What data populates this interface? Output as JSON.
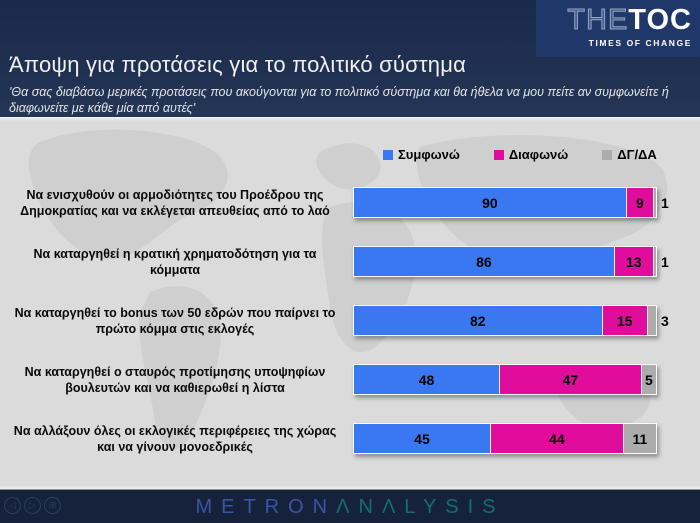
{
  "header": {
    "title": "Άποψη για προτάσεις για το πολιτικό σύστημα",
    "subtitle": "'Θα σας διαβάσω μερικές προτάσεις που ακούγονται για το πολιτικό σύστημα και θα ήθελα να μου πείτε αν συμφωνείτε ή διαφωνείτε με κάθε μία από αυτές'",
    "logo": {
      "part1": "THE",
      "part2": "TOC",
      "tagline": "TIMES OF CHANGE"
    }
  },
  "chart_data": {
    "type": "bar",
    "orientation": "horizontal",
    "stacked": true,
    "xlim": [
      0,
      100
    ],
    "legend_position": "top",
    "value_labels": true,
    "inside_label_min": 5,
    "categories": [
      "Να ενισχυθούν οι αρμοδιότητες του Προέδρου της Δημοκρατίας και να εκλέγεται απευθείας από το λαό",
      "Να καταργηθεί η κρατική χρηματοδότηση για τα κόμματα",
      "Να καταργηθεί το bonus των 50 εδρών που παίρνει το πρώτο κόμμα στις εκλογές",
      "Να καταργηθεί ο σταυρός προτίμησης υποψηφίων βουλευτών και να καθιερωθεί η λίστα",
      "Να αλλάξουν όλες οι εκλογικές περιφέρειες της χώρας και να γίνουν μονοεδρικές"
    ],
    "series": [
      {
        "name": "Συμφωνώ",
        "color": "#3A78F2",
        "values": [
          90,
          86,
          82,
          48,
          45
        ]
      },
      {
        "name": "Διαφωνώ",
        "color": "#DF0C9C",
        "values": [
          9,
          13,
          15,
          47,
          44
        ]
      },
      {
        "name": "ΔΓ/ΔΑ",
        "color": "#ACACAC",
        "values": [
          1,
          1,
          3,
          5,
          11
        ]
      }
    ]
  },
  "footer": {
    "brand_part1": "METRON",
    "brand_part2": "ΛNΛLYSIS",
    "nav": {
      "prev": "◁",
      "next": "▷",
      "overview": "⊞"
    }
  },
  "colors": {
    "header_bg": "#1B294A",
    "logo_box_bg": "#20376A",
    "chart_bg": "#DBDBDB",
    "footer_bg": "#16213C",
    "agree_blue": "#3A78F2",
    "disagree_magenta": "#DF0C9C",
    "dk_gray": "#ACACAC",
    "brand_blue": "#3B54A4",
    "brand_teal": "#11706C"
  }
}
